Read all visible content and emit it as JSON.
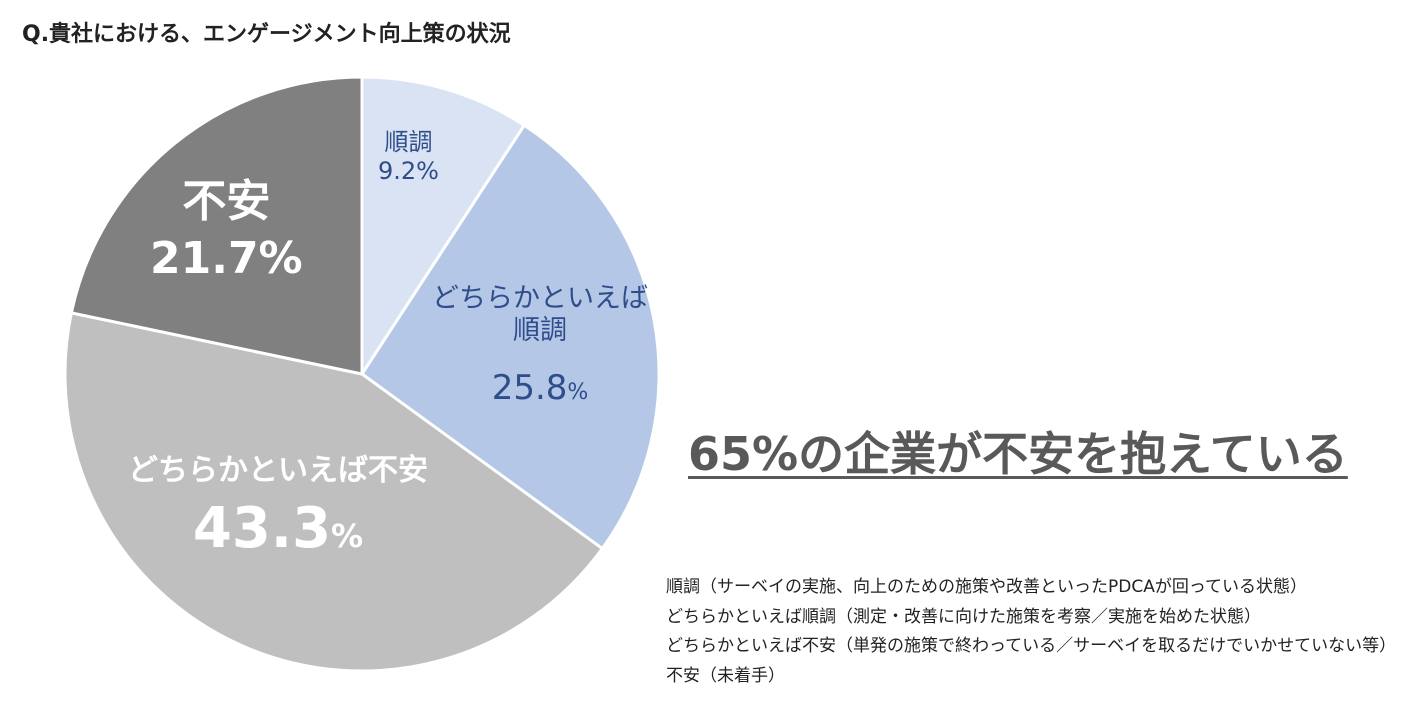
{
  "title": "Q.貴社における、エンゲージメント向上策の状況",
  "headline": "65%の企業が不安を抱えている",
  "chart_data": {
    "type": "pie",
    "categories": [
      "順調",
      "どちらかといえば順調",
      "どちらかといえば不安",
      "不安"
    ],
    "values": [
      9.2,
      25.8,
      43.3,
      21.7
    ],
    "colors": [
      "#dae3f3",
      "#b4c7e7",
      "#bfbfbf",
      "#808080"
    ],
    "labels": [
      {
        "name": "順調",
        "pct": "9.2%"
      },
      {
        "name_lines": [
          "どちらかといえば",
          "順調"
        ],
        "pct_num": "25.8",
        "pct_unit": "%"
      },
      {
        "name": "どちらかといえば不安",
        "pct_num": "43.3",
        "pct_unit": "%"
      },
      {
        "name": "不安",
        "pct": "21.7%"
      }
    ]
  },
  "legend_notes": [
    "順調（サーベイの実施、向上のための施策や改善といったPDCAが回っている状態）",
    "どちらかといえば順調（測定・改善に向けた施策を考察／実施を始めた状態）",
    "どちらかといえば不安（単発の施策で終わっている／サーベイを取るだけでいかせていない等）",
    "不安（未着手）"
  ]
}
